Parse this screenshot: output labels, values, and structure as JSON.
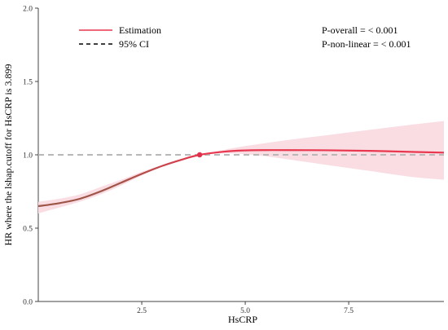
{
  "chart_data": {
    "type": "line",
    "xlabel": "HsCRP",
    "ylabel": "HR where the lshap.cutoff for HsCRP is 3.899",
    "xlim": [
      0,
      9.8
    ],
    "ylim": [
      0,
      2.0
    ],
    "x_ticks": [
      2.5,
      5.0,
      7.5
    ],
    "x_tick_labels": [
      "2.5",
      "5.0",
      "7.5"
    ],
    "y_ticks": [
      0.0,
      0.5,
      1.0,
      1.5,
      2.0
    ],
    "y_tick_labels": [
      "0.0",
      "0.5",
      "1.0",
      "1.5",
      "2.0"
    ],
    "reference_line_y": 1.0,
    "cutoff_point": {
      "x": 3.899,
      "y": 1.0
    },
    "legend": [
      {
        "label": "Estimation",
        "style": "solid",
        "color": "#e8374f"
      },
      {
        "label": "95% CI",
        "style": "dashed",
        "color": "#000000"
      }
    ],
    "annotations": [
      "P-overall = < 0.001",
      "P-non-linear = < 0.001"
    ],
    "series": [
      {
        "x": [
          0.0,
          0.5,
          1.0,
          1.5,
          2.0,
          2.5,
          3.0,
          3.5,
          3.899,
          4.5,
          5.0,
          5.5,
          6.0,
          7.0,
          8.0,
          9.0,
          9.8
        ],
        "y": [
          0.65,
          0.67,
          0.7,
          0.75,
          0.81,
          0.87,
          0.925,
          0.97,
          1.0,
          1.022,
          1.03,
          1.032,
          1.032,
          1.031,
          1.027,
          1.02,
          1.015
        ],
        "lower": [
          0.6,
          0.64,
          0.68,
          0.73,
          0.79,
          0.86,
          0.92,
          0.966,
          1.0,
          1.01,
          1.005,
          0.99,
          0.97,
          0.93,
          0.89,
          0.85,
          0.83
        ],
        "upper": [
          0.68,
          0.7,
          0.73,
          0.78,
          0.83,
          0.885,
          0.93,
          0.975,
          1.0,
          1.035,
          1.06,
          1.08,
          1.1,
          1.135,
          1.17,
          1.205,
          1.23
        ]
      }
    ],
    "colors": {
      "line": "#e8374f",
      "line_low": "#9e5548",
      "ci_band": "#f9dde3",
      "reference": "#b8b8b8",
      "point": "#e0304a"
    }
  }
}
